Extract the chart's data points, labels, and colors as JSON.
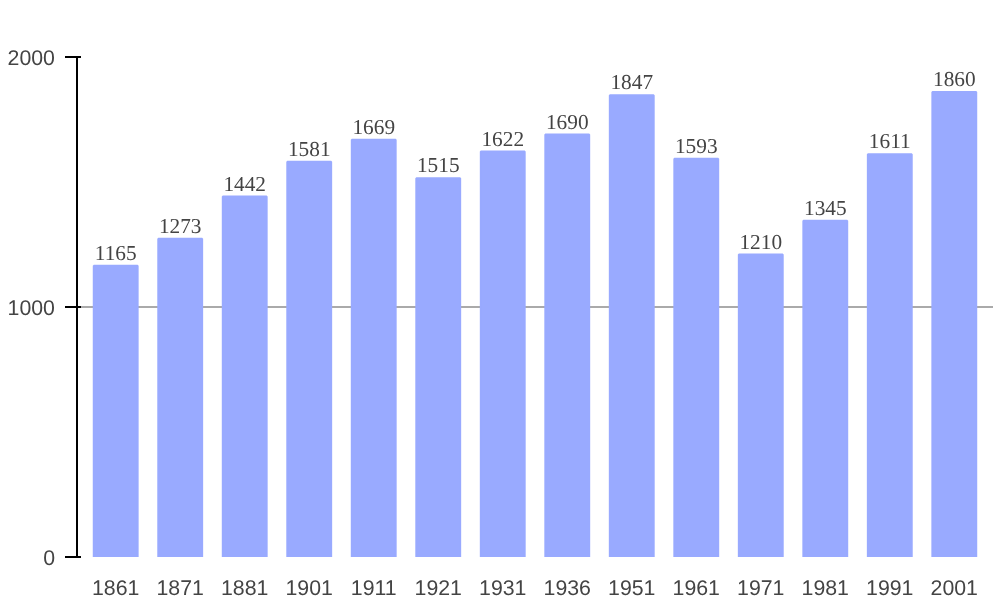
{
  "chart_data": {
    "type": "bar",
    "categories": [
      "1861",
      "1871",
      "1881",
      "1901",
      "1911",
      "1921",
      "1931",
      "1936",
      "1951",
      "1961",
      "1971",
      "1981",
      "1991",
      "2001"
    ],
    "values": [
      1165,
      1273,
      1442,
      1581,
      1669,
      1515,
      1622,
      1690,
      1847,
      1593,
      1210,
      1345,
      1611,
      1860
    ],
    "color": "#99aaff",
    "ylim": [
      0,
      2000
    ],
    "yticks": [
      0,
      1000,
      2000
    ],
    "grid": "y",
    "data_labels": true
  }
}
